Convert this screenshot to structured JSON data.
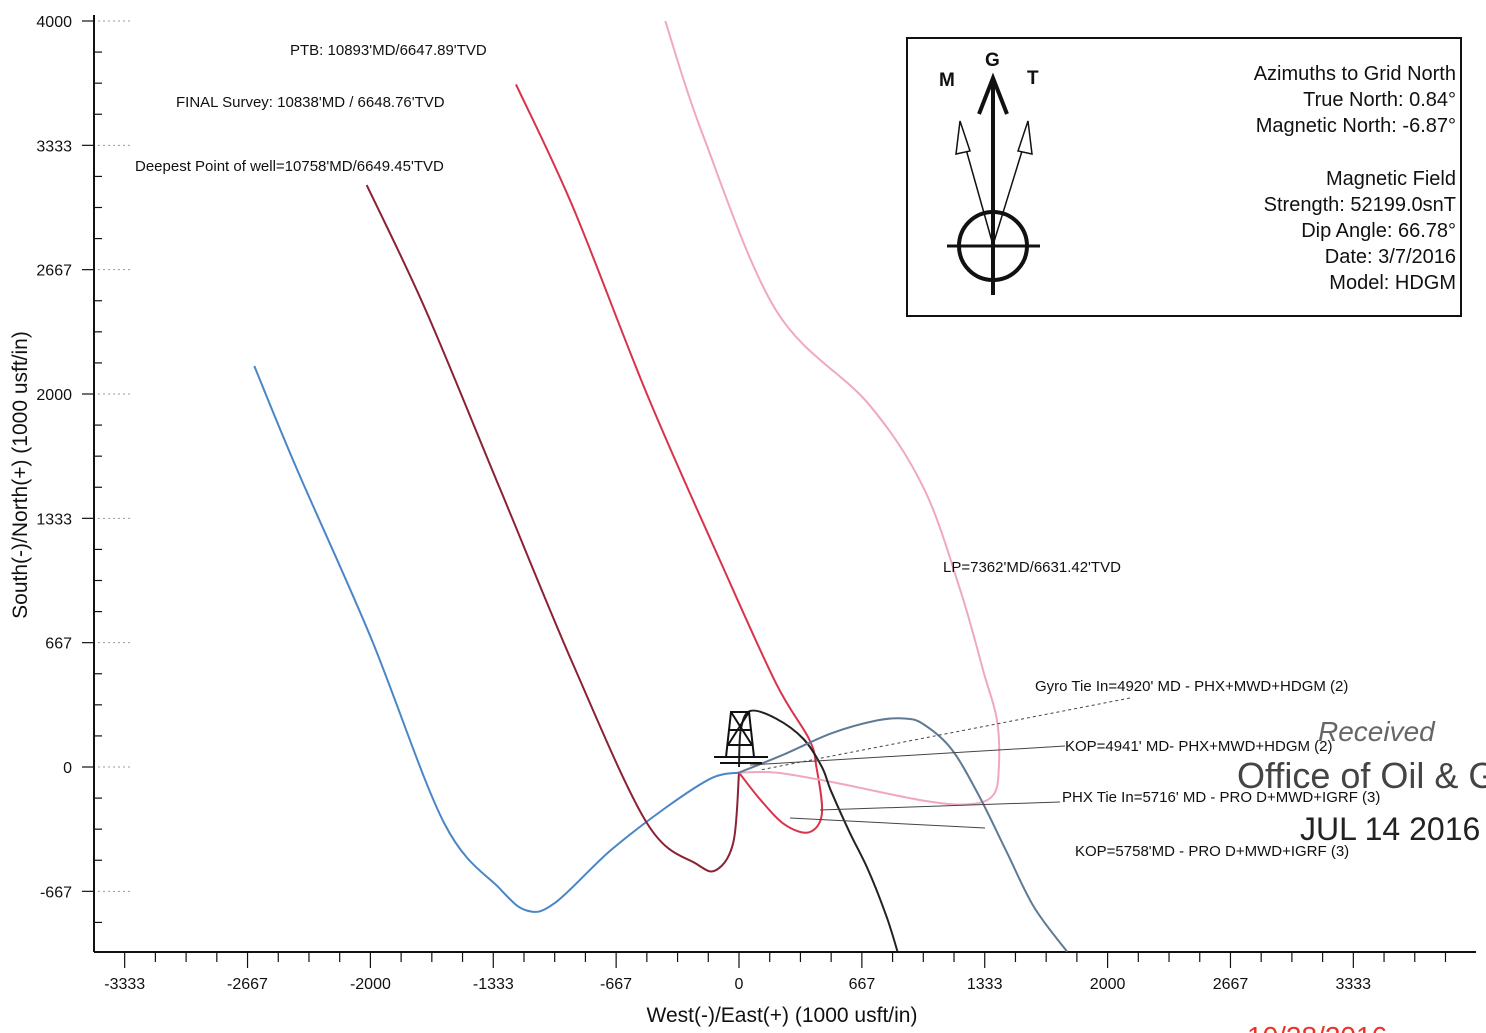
{
  "chart_data": {
    "type": "line",
    "title": "",
    "xlabel": "West(-)/East(+) (1000 usft/in)",
    "ylabel": "South(-)/North(+) (1000 usft/in)",
    "xlim": [
      -3500,
      4000
    ],
    "ylim": [
      -1000,
      4000
    ],
    "xticks": [
      -3333,
      -2667,
      -2000,
      -1333,
      -667,
      0,
      667,
      1333,
      2000,
      2667,
      3333
    ],
    "xtick_labels": [
      "-3333",
      "-2667",
      "-2000",
      "-1333",
      "-667",
      "0",
      "667",
      "1333",
      "2000",
      "2667",
      "3333"
    ],
    "yticks": [
      -667,
      0,
      667,
      1333,
      2000,
      2667,
      3333,
      4000
    ],
    "ytick_labels": [
      "-667",
      "0",
      "667",
      "1333",
      "2000",
      "2667",
      "3333",
      "4000"
    ],
    "grid": false,
    "series": [
      {
        "color": "#4a86c6",
        "x": [
          -2630,
          -2400,
          -2000,
          -1600,
          -1300,
          -1150,
          -1000,
          -700,
          -400,
          -150,
          0
        ],
        "y": [
          2150,
          1600,
          700,
          -300,
          -650,
          -770,
          -730,
          -450,
          -220,
          -60,
          -30
        ]
      },
      {
        "color": "#8b2233",
        "x": [
          -2020,
          -1700,
          -1300,
          -900,
          -500,
          -230,
          -120,
          -30,
          0
        ],
        "y": [
          3120,
          2450,
          1500,
          550,
          -300,
          -520,
          -550,
          -400,
          -30
        ]
      },
      {
        "color": "#d8334a",
        "x": [
          -1210,
          -900,
          -500,
          -100,
          200,
          380,
          420,
          450,
          380,
          250,
          120,
          0
        ],
        "y": [
          3660,
          3000,
          2000,
          1100,
          450,
          150,
          0,
          -250,
          -350,
          -310,
          -180,
          -30
        ]
      },
      {
        "color": "#f0a8bf",
        "x": [
          -400,
          -200,
          200,
          700,
          1000,
          1200,
          1330,
          1400,
          1410,
          1380,
          1250,
          1000,
          500,
          200,
          0
        ],
        "y": [
          4000,
          3400,
          2450,
          1950,
          1500,
          950,
          500,
          250,
          0,
          -150,
          -200,
          -180,
          -80,
          -30,
          -30
        ]
      },
      {
        "color": "#222222",
        "x": [
          0,
          10,
          60,
          200,
          350,
          450,
          500,
          600,
          700,
          800,
          860
        ],
        "y": [
          0,
          200,
          300,
          260,
          150,
          0,
          -130,
          -350,
          -550,
          -800,
          -990
        ]
      },
      {
        "color": "#5e7a94",
        "x": [
          0,
          250,
          500,
          750,
          900,
          1000,
          1150,
          1300,
          1450,
          1600,
          1780
        ],
        "y": [
          -30,
          70,
          180,
          250,
          260,
          230,
          100,
          -150,
          -450,
          -750,
          -990
        ]
      }
    ],
    "annotations": [
      "PTB: 10893'MD/6647.89'TVD",
      "FINAL Survey: 10838'MD / 6648.76'TVD",
      "Deepest Point of well=10758'MD/6649.45'TVD",
      "LP=7362'MD/6631.42'TVD",
      "Gyro Tie In=4920' MD - PHX+MWD+HDGM (2)",
      "KOP=4941' MD- PHX+MWD+HDGM (2)",
      "PHX Tie In=5716' MD - PRO D+MWD+IGRF (3)",
      "KOP=5758'MD - PRO D+MWD+IGRF (3)"
    ],
    "north_arrow": {
      "m_label": "M",
      "g_label": "G",
      "t_label": "T"
    },
    "legend_lines": [
      "Azimuths to Grid North",
      "True North: 0.84°",
      "Magnetic North: -6.87°",
      "",
      "Magnetic Field",
      "Strength: 52199.0snT",
      "Dip Angle: 66.78°",
      "Date: 3/7/2016",
      "Model: HDGM"
    ]
  },
  "stamp": {
    "line1": "Received",
    "line2": "Office of Oil & G",
    "line3": "JUL 14 2016",
    "footer_partial": "10/28/2016"
  }
}
